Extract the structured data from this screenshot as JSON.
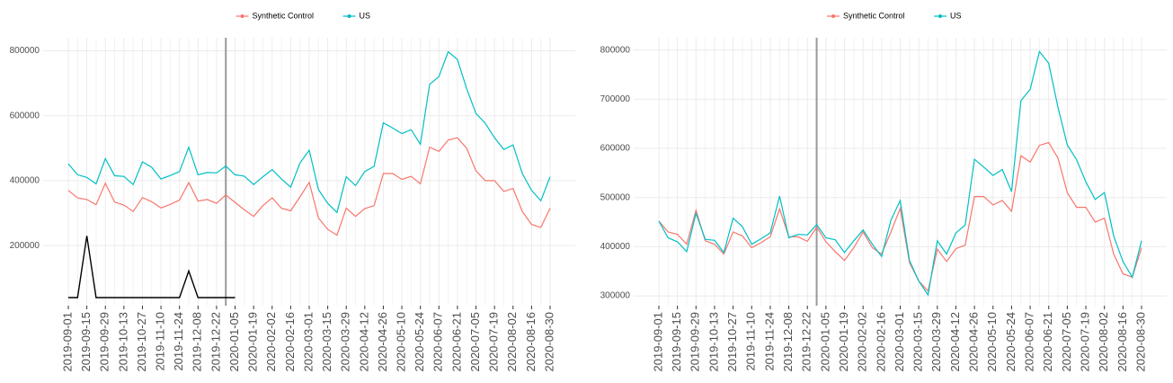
{
  "chart_data": [
    {
      "type": "line",
      "categories": [
        "2019-09-01",
        null,
        "2019-09-15",
        null,
        "2019-09-29",
        null,
        "2019-10-13",
        null,
        "2019-10-27",
        null,
        "2019-11-10",
        null,
        "2019-11-24",
        null,
        "2019-12-08",
        null,
        "2019-12-22",
        null,
        "2020-01-05",
        null,
        "2020-01-19",
        null,
        "2020-02-02",
        null,
        "2020-02-16",
        null,
        "2020-03-01",
        null,
        "2020-03-15",
        null,
        "2020-03-29",
        null,
        "2020-04-12",
        null,
        "2020-04-26",
        null,
        "2020-05-10",
        null,
        "2020-05-24",
        null,
        "2020-06-07",
        null,
        "2020-06-21",
        null,
        "2020-07-05",
        null,
        "2020-07-19",
        null,
        "2020-08-02",
        null,
        "2020-08-16",
        null,
        "2020-08-30"
      ],
      "series": [
        {
          "name": "Synthetic Control",
          "color": "#f8766d",
          "values": [
            370000,
            347000,
            342000,
            326000,
            392000,
            334000,
            325000,
            305000,
            348000,
            335000,
            316000,
            327000,
            340000,
            394000,
            337000,
            342000,
            330000,
            356000,
            333000,
            310000,
            290000,
            323000,
            347000,
            315000,
            307000,
            350000,
            395000,
            285000,
            250000,
            232000,
            315000,
            290000,
            314000,
            323000,
            422000,
            422000,
            404000,
            413000,
            390000,
            503000,
            490000,
            525000,
            532000,
            500000,
            430000,
            400000,
            400000,
            367000,
            376000,
            305000,
            265000,
            256000,
            315000
          ]
        },
        {
          "name": "US",
          "color": "#00bfc4",
          "values": [
            452000,
            418000,
            410000,
            390000,
            468000,
            415000,
            413000,
            388000,
            458000,
            441000,
            405000,
            416000,
            428000,
            503000,
            418000,
            425000,
            424000,
            445000,
            418000,
            414000,
            388000,
            412000,
            434000,
            405000,
            380000,
            454000,
            494000,
            372000,
            330000,
            302000,
            412000,
            385000,
            428000,
            444000,
            578000,
            562000,
            545000,
            557000,
            512000,
            697000,
            720000,
            797000,
            773000,
            683000,
            607000,
            577000,
            532000,
            496000,
            510000,
            422000,
            370000,
            338000,
            412000
          ]
        },
        {
          "color": "#000000",
          "values": [
            40000,
            40000,
            230000,
            40000,
            40000,
            40000,
            40000,
            40000,
            40000,
            40000,
            40000,
            40000,
            40000,
            122000,
            40000,
            40000,
            40000,
            40000,
            40000,
            null,
            null,
            null,
            null,
            null,
            null,
            null,
            null,
            null,
            null,
            null,
            null,
            null,
            null,
            null,
            null,
            null,
            null,
            null,
            null,
            null,
            null,
            null,
            null,
            null,
            null,
            null,
            null,
            null,
            null,
            null,
            null,
            null,
            null
          ]
        }
      ],
      "ylim": [
        15000,
        840000
      ],
      "yticks": [
        200000,
        400000,
        600000,
        800000
      ],
      "vline_index": 17,
      "grid": true,
      "legend": "top"
    },
    {
      "type": "line",
      "categories": [
        "2019-09-01",
        null,
        "2019-09-15",
        null,
        "2019-09-29",
        null,
        "2019-10-13",
        null,
        "2019-10-27",
        null,
        "2019-11-10",
        null,
        "2019-11-24",
        null,
        "2019-12-08",
        null,
        "2019-12-22",
        null,
        "2020-01-05",
        null,
        "2020-01-19",
        null,
        "2020-02-02",
        null,
        "2020-02-16",
        null,
        "2020-03-01",
        null,
        "2020-03-15",
        null,
        "2020-03-29",
        null,
        "2020-04-12",
        null,
        "2020-04-26",
        null,
        "2020-05-10",
        null,
        "2020-05-24",
        null,
        "2020-06-07",
        null,
        "2020-06-21",
        null,
        "2020-07-05",
        null,
        "2020-07-19",
        null,
        "2020-08-02",
        null,
        "2020-08-16",
        null,
        "2020-08-30"
      ],
      "series": [
        {
          "name": "Synthetic Control",
          "color": "#f8766d",
          "values": [
            452000,
            430000,
            425000,
            405000,
            474000,
            412000,
            405000,
            385000,
            430000,
            422000,
            398000,
            408000,
            420000,
            477000,
            420000,
            420000,
            411000,
            440000,
            410000,
            390000,
            372000,
            398000,
            430000,
            398000,
            385000,
            430000,
            478000,
            368000,
            330000,
            310000,
            395000,
            370000,
            396000,
            403000,
            502000,
            502000,
            485000,
            494000,
            472000,
            585000,
            572000,
            606000,
            612000,
            580000,
            510000,
            480000,
            480000,
            450000,
            458000,
            385000,
            345000,
            338000,
            398000
          ]
        },
        {
          "name": "US",
          "color": "#00bfc4",
          "values": [
            452000,
            418000,
            410000,
            390000,
            468000,
            415000,
            413000,
            388000,
            458000,
            441000,
            405000,
            416000,
            428000,
            503000,
            418000,
            425000,
            424000,
            445000,
            418000,
            414000,
            388000,
            412000,
            434000,
            405000,
            380000,
            454000,
            494000,
            372000,
            330000,
            302000,
            412000,
            385000,
            428000,
            444000,
            578000,
            562000,
            545000,
            557000,
            512000,
            697000,
            720000,
            797000,
            773000,
            683000,
            607000,
            577000,
            532000,
            496000,
            510000,
            422000,
            370000,
            338000,
            412000
          ]
        }
      ],
      "ylim": [
        280000,
        825000
      ],
      "yticks": [
        300000,
        400000,
        500000,
        600000,
        700000,
        800000
      ],
      "vline_index": 17,
      "grid": true,
      "legend": "top"
    }
  ]
}
